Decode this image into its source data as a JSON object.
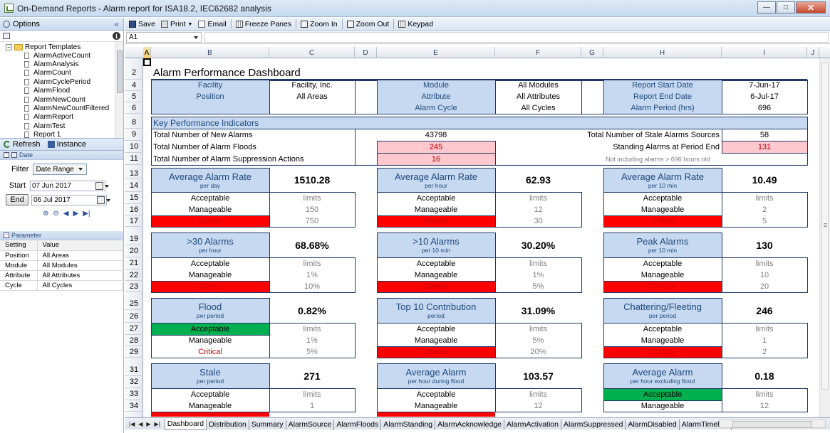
{
  "window": {
    "title": "On-Demand Reports - Alarm report for ISA18.2, IEC62682 analysis"
  },
  "left": {
    "options_label": "Options",
    "tree_root": "Report Templates",
    "templates": [
      "AlarmActiveCount",
      "AlarmAnalysis",
      "AlarmCount",
      "AlarmCyclePeriod",
      "AlarmFlood",
      "AlarmNewCount",
      "AlarmNewCountFiltered",
      "AlarmReport",
      "AlarmTest",
      "Report 1"
    ],
    "refresh_label": "Refresh",
    "instance_label": "Instance",
    "date_section": "Date",
    "filter_label": "Filter",
    "filter_value": "Date Range",
    "start_label": "Start",
    "start_date": "07 Jun  2017",
    "end_label": "End",
    "end_date": "06  Jul  2017",
    "parameter_section": "Parameter",
    "param_header": [
      "Setting",
      "Value"
    ],
    "params": [
      [
        "Position",
        "All Areas"
      ],
      [
        "Module",
        "All Modules"
      ],
      [
        "Attribute",
        "All Attributes"
      ],
      [
        "Cycle",
        "All Cycles"
      ]
    ]
  },
  "toolbar": {
    "save": "Save",
    "print": "Print",
    "email": "Email",
    "freeze": "Freeze Panes",
    "zoom_in": "Zoom In",
    "zoom_out": "Zoom Out",
    "keypad": "Keypad"
  },
  "namebox": "A1",
  "columns": [
    "A",
    "B",
    "C",
    "D",
    "E",
    "F",
    "G",
    "H",
    "I",
    "J"
  ],
  "rows": [
    "2",
    "4",
    "5",
    "6",
    "8",
    "9",
    "10",
    "11",
    "13",
    "14",
    "15",
    "16",
    "17",
    "19",
    "20",
    "21",
    "22",
    "23",
    "25",
    "26",
    "27",
    "28",
    "29",
    "31",
    "32",
    "33",
    "34"
  ],
  "dashboard": {
    "title": "Alarm Performance Dashboard",
    "facility_label": "Facility",
    "facility_value": "Facility, Inc.",
    "position_label": "Position",
    "position_value": "All Areas",
    "module_label": "Module",
    "module_value": "All Modules",
    "attribute_label": "Attribute",
    "attribute_value": "All Attributes",
    "cycle_label": "Alarm Cycle",
    "cycle_value": "All Cycles",
    "start_label": "Report Start Date",
    "start_value": "7-Jun-17",
    "end_label": "Report End Date",
    "end_value": "6-Jul-17",
    "period_label": "Alarm Period (hrs)",
    "period_value": "696",
    "kpi_title": "Key Performance Indicators",
    "new_alarms_label": "Total Number of New Alarms",
    "new_alarms_value": "43798",
    "floods_label": "Total Number of Alarm Floods",
    "floods_value": "245",
    "suppression_label": "Total Number of Alarm Suppression Actions",
    "suppression_value": "16",
    "stale_sources_label": "Total Number of Stale Alarms Sources",
    "stale_sources_value": "58",
    "standing_label": "Standing Alarms at Period End",
    "standing_value": "131",
    "standing_note": "Not including alarms > 696 hours old"
  },
  "cards": [
    {
      "title": "Average Alarm Rate",
      "sub": "per day",
      "value": "1510.28",
      "acc": "limits",
      "man": "150",
      "crit": "750",
      "status": "critical"
    },
    {
      "title": "Average Alarm Rate",
      "sub": "per hour",
      "value": "62.93",
      "acc": "limits",
      "man": "12",
      "crit": "30",
      "status": "critical"
    },
    {
      "title": "Average Alarm Rate",
      "sub": "per 10 min",
      "value": "10.49",
      "acc": "limits",
      "man": "2",
      "crit": "5",
      "status": "critical"
    },
    {
      "title": ">30 Alarms",
      "sub": "per hour",
      "value": "68.68%",
      "acc": "limits",
      "man": "1%",
      "crit": "10%",
      "status": "critical"
    },
    {
      "title": ">10 Alarms",
      "sub": "per 10 min",
      "value": "30.20%",
      "acc": "limits",
      "man": "1%",
      "crit": "5%",
      "status": "critical"
    },
    {
      "title": "Peak Alarms",
      "sub": "per 10 min",
      "value": "130",
      "acc": "limits",
      "man": "10",
      "crit": "20",
      "status": "critical"
    },
    {
      "title": "Flood",
      "sub": "per period",
      "value": "0.82%",
      "acc": "limits",
      "man": "1%",
      "crit": "5%",
      "status": "acceptable"
    },
    {
      "title": "Top 10 Contribution",
      "sub": "period",
      "value": "31.09%",
      "acc": "limits",
      "man": "5%",
      "crit": "20%",
      "status": "critical"
    },
    {
      "title": "Chattering/Fleeting",
      "sub": "per period",
      "value": "246",
      "acc": "limits",
      "man": "1",
      "crit": "2",
      "status": "critical"
    },
    {
      "title": "Stale",
      "sub": "per period",
      "value": "271",
      "acc": "limits",
      "man": "1",
      "crit": "",
      "status": "critical"
    },
    {
      "title": "Average Alarm",
      "sub": "per hour during flood",
      "value": "103.57",
      "acc": "limits",
      "man": "12",
      "crit": "",
      "status": "critical"
    },
    {
      "title": "Average Alarm",
      "sub": "per hour excluding flood",
      "value": "0.18",
      "acc": "limits",
      "man": "12",
      "crit": "",
      "status": "acceptable"
    }
  ],
  "labels": {
    "acceptable": "Acceptable",
    "manageable": "Manageable",
    "critical": "Critical"
  },
  "sheet_tabs": [
    "Dashboard",
    "Distribution",
    "Summary",
    "AlarmSource",
    "AlarmFloods",
    "AlarmStanding",
    "AlarmAcknowledge",
    "AlarmActivation",
    "AlarmSuppressed",
    "AlarmDisabled",
    "AlarmTimeline"
  ],
  "colors": {
    "header_blue": "#c6d9f1",
    "critical_red": "#ff0000",
    "acceptable_green": "#00b050",
    "warning_pink": "#ffc7ce"
  }
}
